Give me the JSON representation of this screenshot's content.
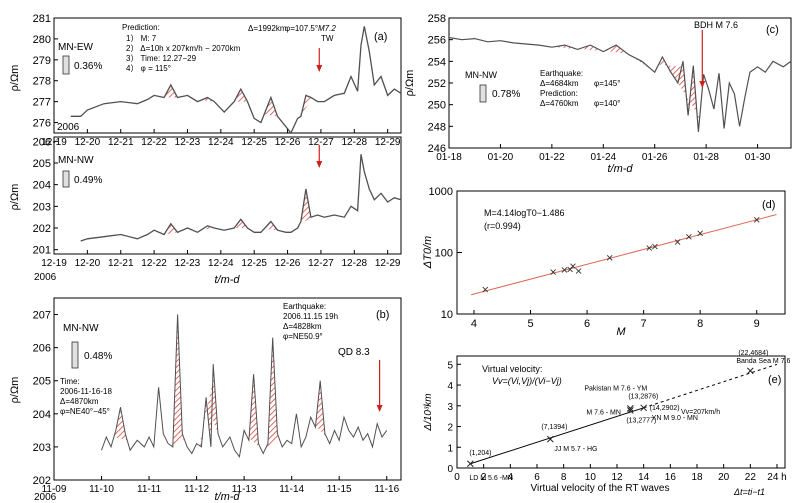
{
  "colors": {
    "series": "#505050",
    "hatch": "#d9463c",
    "arrow": "#d0201a",
    "axis": "#000000",
    "fit": "#e06a55",
    "grid": "#c8c8c8"
  },
  "chart_data": [
    {
      "id": "a",
      "type": "line",
      "panel_label": "(a)",
      "channel": "MN-EW",
      "scale_pct": "0.36%",
      "year": "2006",
      "ylabel": "ρ/Ωm",
      "ylim": [
        275.5,
        281
      ],
      "yticks": [
        276,
        277,
        278,
        279,
        280,
        281
      ],
      "xticks": [
        "12-19",
        "12-20",
        "12-21",
        "12-22",
        "12-23",
        "12-24",
        "12-25",
        "12-26",
        "12-27",
        "12-28",
        "12-29"
      ],
      "xlim": [
        19,
        29.4
      ],
      "annotation": {
        "title": "Prediction:",
        "lines": [
          "1） M: 7",
          "2） Δ=10h x 207km/h − 2070km",
          "3） Time: 12.27−29",
          "4） φ = 115°"
        ],
        "delta": "Δ=1992km",
        "phi": "φ=107.5°",
        "event": "M7.2",
        "event_sub": "TW"
      },
      "arrow_day": 26.95,
      "series": {
        "name": "MN-EW",
        "x": [
          19.5,
          19.8,
          20.0,
          20.5,
          21.0,
          21.5,
          21.8,
          22.0,
          22.3,
          22.5,
          22.7,
          23.0,
          23.3,
          23.6,
          23.8,
          24.1,
          24.4,
          24.6,
          24.8,
          25.0,
          25.2,
          25.5,
          25.7,
          25.95,
          26.1,
          26.3,
          26.4,
          26.55,
          26.7,
          26.9,
          27.1,
          27.4,
          27.7,
          27.9,
          28.1,
          28.2,
          28.3,
          28.45,
          28.6,
          28.8,
          29.0,
          29.2,
          29.4
        ],
        "y": [
          276.3,
          276.3,
          276.6,
          276.9,
          277.0,
          276.9,
          277.1,
          277.3,
          277.2,
          277.8,
          277.2,
          277.3,
          277.0,
          277.2,
          277.0,
          276.5,
          277.0,
          277.6,
          277.0,
          276.2,
          276.0,
          277.2,
          276.3,
          275.8,
          275.5,
          276.2,
          276.3,
          277.3,
          277.2,
          277.0,
          277.0,
          277.3,
          277.4,
          278.2,
          277.5,
          279.7,
          280.6,
          279.4,
          277.8,
          278.2,
          277.3,
          277.6,
          277.4
        ]
      },
      "anomaly_days": [
        22.5,
        23.6,
        24.6,
        25.5,
        26.55
      ]
    },
    {
      "id": "a2",
      "type": "line",
      "channel": "MN-NW",
      "scale_pct": "0.49%",
      "year": "2006",
      "ylabel": "ρ/Ωm",
      "ylim": [
        200.8,
        206.2
      ],
      "yticks": [
        201,
        202,
        203,
        204,
        205,
        206
      ],
      "xticks": [
        "12-19",
        "12-20",
        "12-21",
        "12-22",
        "12-23",
        "12-24",
        "12-25",
        "12-26",
        "12-27",
        "12-28",
        "12-29"
      ],
      "xlim": [
        19,
        29.4
      ],
      "xlabel": "t/m-d",
      "arrow_day": 26.95,
      "series": {
        "name": "MN-NW",
        "x": [
          19.8,
          20.0,
          20.5,
          21.0,
          21.5,
          21.8,
          22.0,
          22.3,
          22.5,
          22.7,
          23.0,
          23.3,
          23.6,
          23.8,
          24.1,
          24.4,
          24.6,
          24.8,
          25.0,
          25.2,
          25.5,
          25.7,
          25.95,
          26.1,
          26.3,
          26.4,
          26.55,
          26.7,
          26.9,
          27.1,
          27.4,
          27.7,
          27.9,
          28.1,
          28.2,
          28.3,
          28.45,
          28.6,
          28.8,
          29.0,
          29.2,
          29.4
        ],
        "y": [
          201.4,
          201.5,
          201.6,
          201.7,
          201.5,
          201.7,
          201.9,
          201.7,
          202.2,
          201.8,
          202.0,
          201.8,
          202.1,
          202.0,
          201.9,
          202.0,
          202.4,
          202.0,
          201.8,
          201.8,
          202.3,
          201.9,
          201.8,
          201.8,
          202.0,
          202.3,
          203.8,
          202.5,
          202.6,
          202.5,
          202.6,
          202.5,
          203.0,
          202.8,
          205.4,
          204.6,
          203.8,
          203.3,
          203.6,
          203.2,
          203.4,
          203.3
        ]
      },
      "anomaly_days": [
        22.5,
        23.6,
        24.6,
        25.5,
        26.55
      ]
    },
    {
      "id": "b",
      "type": "line",
      "panel_label": "(b)",
      "channel": "MN-NW",
      "scale_pct": "0.48%",
      "year": "2006",
      "ylabel": "ρ/Ωm",
      "xlabel": "t/m-d",
      "ylim": [
        202,
        207.5
      ],
      "yticks": [
        202,
        203,
        204,
        205,
        206,
        207
      ],
      "xticks": [
        "11-09",
        "11-10",
        "11-11",
        "11-12",
        "11-13",
        "11-14",
        "11-15",
        "11-16"
      ],
      "xlim": [
        9,
        16.3
      ],
      "earthquake": {
        "title": "Earthquake:",
        "time": "2006.11.15 19h",
        "delta": "Δ=4828km",
        "phi": "φ=NE50.9°"
      },
      "time_note": {
        "title": "Time:",
        "range": "2006-11-16-18",
        "delta": "Δ=4870km",
        "phi": "φ=NE40°−45°"
      },
      "event": "QD 8.3",
      "arrow_day": 15.85,
      "series": {
        "name": "MN-NW",
        "x": [
          10.0,
          10.1,
          10.2,
          10.3,
          10.4,
          10.5,
          10.6,
          10.75,
          10.9,
          11.0,
          11.1,
          11.2,
          11.3,
          11.4,
          11.5,
          11.6,
          11.7,
          11.8,
          11.9,
          12.0,
          12.1,
          12.2,
          12.3,
          12.35,
          12.45,
          12.55,
          12.7,
          12.8,
          12.9,
          13.0,
          13.1,
          13.2,
          13.3,
          13.4,
          13.5,
          13.6,
          13.7,
          13.8,
          13.9,
          14.0,
          14.1,
          14.2,
          14.3,
          14.4,
          14.5,
          14.6,
          14.7,
          14.8,
          14.9,
          15.0,
          15.1,
          15.2,
          15.3,
          15.4,
          15.5,
          15.6,
          15.7,
          15.8,
          15.9,
          16.0
        ],
        "y": [
          202.9,
          203.3,
          203.0,
          203.5,
          204.2,
          203.4,
          202.9,
          203.2,
          203.0,
          203.3,
          203.0,
          204.8,
          203.4,
          203.1,
          203.0,
          207.0,
          203.4,
          203.0,
          202.8,
          203.1,
          203.0,
          204.5,
          203.0,
          205.5,
          203.4,
          203.0,
          203.3,
          202.9,
          202.7,
          203.5,
          203.2,
          205.2,
          203.1,
          202.8,
          203.1,
          206.3,
          203.4,
          203.0,
          203.2,
          203.1,
          204.0,
          203.0,
          203.3,
          203.9,
          203.6,
          205.0,
          203.4,
          203.1,
          203.5,
          203.2,
          203.9,
          203.5,
          203.3,
          203.6,
          203.2,
          203.4,
          203.0,
          203.7,
          203.3,
          203.5
        ]
      },
      "anomaly_days": [
        10.4,
        11.6,
        12.2,
        12.35,
        13.2,
        13.6,
        14.6
      ]
    },
    {
      "id": "c",
      "type": "line",
      "panel_label": "(c)",
      "channel": "MN-NW",
      "scale_pct": "0.78%",
      "ylabel": "ρ/Ωm",
      "xlabel": "t/m-d",
      "ylim": [
        246,
        258
      ],
      "yticks": [
        246,
        248,
        250,
        252,
        254,
        256,
        258
      ],
      "xticks": [
        "01-18",
        "01-20",
        "01-22",
        "01-24",
        "01-26",
        "01-28",
        "01-30"
      ],
      "xlim": [
        18,
        31.3
      ],
      "event": "BDH M 7.6",
      "arrow_day": 27.85,
      "earthquake": {
        "title": "Earthquake:",
        "delta": "Δ=4684km",
        "phi": "φ=145°"
      },
      "prediction": {
        "title": "Prediction:",
        "delta": "Δ=4760km",
        "phi": "φ=140°"
      },
      "series": {
        "name": "MN-NW",
        "x": [
          18.0,
          18.5,
          19.0,
          19.5,
          20.0,
          20.5,
          21.0,
          21.5,
          22.0,
          22.5,
          23.0,
          23.5,
          24.0,
          24.5,
          25.0,
          25.5,
          26.0,
          26.3,
          26.6,
          26.9,
          27.1,
          27.3,
          27.5,
          27.7,
          27.9,
          28.1,
          28.3,
          28.5,
          28.7,
          28.9,
          29.1,
          29.3,
          29.5,
          29.7,
          30.0,
          30.3,
          30.6,
          31.0,
          31.3
        ],
        "y": [
          256.2,
          256.0,
          256.1,
          255.8,
          255.9,
          255.7,
          255.6,
          255.5,
          255.3,
          255.5,
          255.1,
          255.5,
          254.9,
          255.5,
          254.6,
          254.0,
          253.0,
          254.4,
          253.1,
          252.0,
          254.0,
          249.0,
          253.6,
          247.5,
          252.8,
          251.4,
          249.6,
          252.9,
          247.8,
          252.0,
          251.0,
          248.0,
          250.6,
          253.0,
          253.5,
          253.0,
          254.0,
          253.5,
          254.0
        ]
      },
      "anomaly_days": [
        20.5,
        22.5,
        23.5,
        24.5,
        25.5,
        26.6,
        27.3
      ]
    },
    {
      "id": "d",
      "type": "scatter",
      "panel_label": "(d)",
      "xlabel": "M",
      "ylabel": "ΔT0/m",
      "yscale": "log",
      "xlim": [
        3.7,
        9.5
      ],
      "ylim": [
        10,
        1000
      ],
      "xticks": [
        "4",
        "5",
        "6",
        "7",
        "8",
        "9"
      ],
      "yticks": [
        "10",
        "100",
        "1000"
      ],
      "equation": "M=4.14logT0−1.486",
      "r": "(r=0.994)",
      "fit": {
        "slope": 4.14,
        "intercept": -1.486
      },
      "points": {
        "x": [
          4.2,
          5.4,
          5.6,
          5.7,
          5.75,
          5.85,
          6.4,
          7.1,
          7.2,
          7.6,
          7.8,
          8.0,
          9.0
        ],
        "y": [
          25,
          48,
          52,
          53,
          60,
          50,
          82,
          118,
          125,
          148,
          180,
          205,
          340
        ]
      }
    },
    {
      "id": "e",
      "type": "scatter",
      "panel_label": "(e)",
      "xlabel": "Virtual velocity of the RT waves",
      "xunit": "Δt=ti−t1",
      "ylabel": "Δ/10³km",
      "xlim": [
        0,
        24.6
      ],
      "ylim": [
        0,
        5.4
      ],
      "xticks": [
        "0",
        "2",
        "4",
        "6",
        "8",
        "10",
        "12",
        "14",
        "16",
        "18",
        "20",
        "22",
        "24 h"
      ],
      "yticks": [
        "0",
        "1",
        "2",
        "3",
        "4",
        "5"
      ],
      "formula_title": "Virtual velocity:",
      "formula": "Vv=(Vi,Vj)/(Vi−Vj)",
      "velocity_label": "Vv=207km/h",
      "points": [
        {
          "x": 1.0,
          "y": 0.204,
          "coord": "(1,204)",
          "label": "LD M 5.6 -MN"
        },
        {
          "x": 7.0,
          "y": 1.394,
          "coord": "(7,1394)",
          "label": "JJ M 5.7 - HG"
        },
        {
          "x": 13.0,
          "y": 2.876,
          "coord": "(13,2876)",
          "label": "Pakistan M 7.6 - YM"
        },
        {
          "x": 13.0,
          "y": 2.777,
          "coord": "(13,2777)",
          "label": "M 7.6 - MN"
        },
        {
          "x": 14.0,
          "y": 2.902,
          "coord": "(14,2902)",
          "label": "YN M 9.0 - MN"
        },
        {
          "x": 22.0,
          "y": 4.684,
          "coord": "(22,4684)",
          "label": "Banda Sea M 7.6"
        }
      ]
    }
  ]
}
